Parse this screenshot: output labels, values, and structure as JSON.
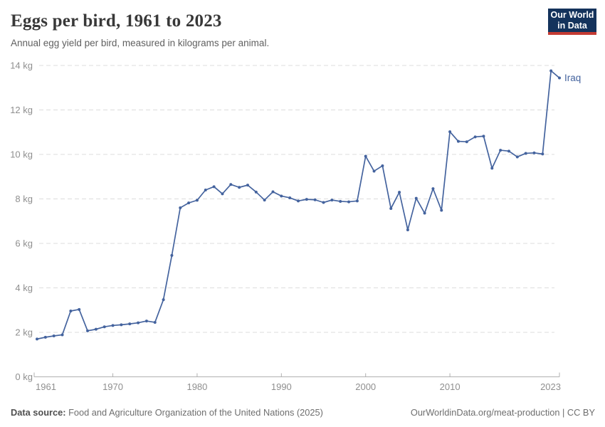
{
  "header": {
    "title": "Eggs per bird, 1961 to 2023",
    "subtitle": "Annual egg yield per bird, measured in kilograms per animal.",
    "logo": {
      "line1": "Our World",
      "line2": "in Data"
    }
  },
  "chart_data": {
    "type": "line",
    "title": "Eggs per bird, 1961 to 2023",
    "xlabel": "",
    "ylabel": "",
    "xlim": [
      1961,
      2023
    ],
    "ylim": [
      0,
      14
    ],
    "y_ticks": [
      0,
      2,
      4,
      6,
      8,
      10,
      12,
      14
    ],
    "y_tick_suffix": " kg",
    "x_ticks": [
      1961,
      1970,
      1980,
      1990,
      2000,
      2010,
      2023
    ],
    "gridlines": "horizontal-dashed",
    "legend_position": "end-of-line",
    "x": [
      1961,
      1962,
      1963,
      1964,
      1965,
      1966,
      1967,
      1968,
      1969,
      1970,
      1971,
      1972,
      1973,
      1974,
      1975,
      1976,
      1977,
      1978,
      1979,
      1980,
      1981,
      1982,
      1983,
      1984,
      1985,
      1986,
      1987,
      1988,
      1989,
      1990,
      1991,
      1992,
      1993,
      1994,
      1995,
      1996,
      1997,
      1998,
      1999,
      2000,
      2001,
      2002,
      2003,
      2004,
      2005,
      2006,
      2007,
      2008,
      2009,
      2010,
      2011,
      2012,
      2013,
      2014,
      2015,
      2016,
      2017,
      2018,
      2019,
      2020,
      2021,
      2022,
      2023
    ],
    "series": [
      {
        "name": "Iraq",
        "values": [
          1.7,
          1.78,
          1.84,
          1.89,
          2.96,
          3.03,
          2.07,
          2.14,
          2.25,
          2.31,
          2.34,
          2.38,
          2.43,
          2.51,
          2.45,
          3.47,
          5.46,
          7.6,
          7.82,
          7.94,
          8.4,
          8.55,
          8.23,
          8.65,
          8.52,
          8.62,
          8.31,
          7.95,
          8.32,
          8.13,
          8.05,
          7.91,
          7.98,
          7.96,
          7.84,
          7.95,
          7.89,
          7.87,
          7.91,
          9.92,
          9.25,
          9.49,
          7.57,
          8.3,
          6.61,
          8.03,
          7.36,
          8.46,
          7.49,
          11.02,
          10.59,
          10.57,
          10.79,
          10.82,
          9.38,
          10.19,
          10.15,
          9.89,
          10.05,
          10.07,
          10.02,
          13.76,
          13.44
        ]
      }
    ]
  },
  "colors": {
    "line": "#44639e",
    "grid": "#dcdcdc",
    "axis": "#b0b0b0",
    "tick_text": "#8f8f8f",
    "title_text": "#383838",
    "subtitle_text": "#606060",
    "footer_text": "#6e6e6e",
    "logo_bg": "#14335c",
    "logo_bar": "#c43b33"
  },
  "footer": {
    "source_label": "Data source:",
    "source_text": " Food and Agriculture Organization of the United Nations (2025)",
    "credit": "OurWorldinData.org/meat-production | CC BY"
  }
}
